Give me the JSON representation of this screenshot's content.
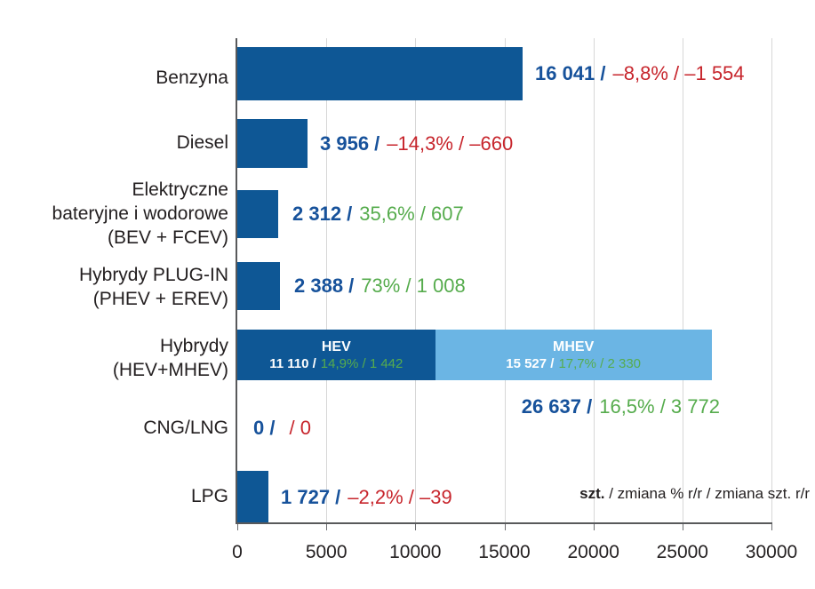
{
  "chart_data": {
    "type": "bar",
    "orientation": "horizontal",
    "title": "",
    "xlabel": "",
    "ylabel": "",
    "xlim": [
      0,
      30000
    ],
    "x_ticks": [
      "0",
      "5000",
      "10000",
      "15000",
      "20000",
      "25000",
      "30000"
    ],
    "grid": "vertical",
    "rows": [
      {
        "category": "Benzyna",
        "label_lines": [
          "Benzyna"
        ],
        "value": 16041,
        "value_label": "16 041 /",
        "change_label": "–8,8% / –1 554",
        "trend": "negative"
      },
      {
        "category": "Diesel",
        "label_lines": [
          "Diesel"
        ],
        "value": 3956,
        "value_label": "3 956 /",
        "change_label": "–14,3% / –660",
        "trend": "negative"
      },
      {
        "category": "Elektryczne bateryjne i wodorowe (BEV + FCEV)",
        "label_lines": [
          "Elektryczne",
          "bateryjne i wodorowe",
          "(BEV + FCEV)"
        ],
        "value": 2312,
        "value_label": "2 312 /",
        "change_label": "35,6% / 607",
        "trend": "positive"
      },
      {
        "category": "Hybrydy PLUG-IN (PHEV + EREV)",
        "label_lines": [
          "Hybrydy PLUG-IN",
          "(PHEV + EREV)"
        ],
        "value": 2388,
        "value_label": "2 388 /",
        "change_label": "73% / 1 008",
        "trend": "positive"
      },
      {
        "category": "Hybrydy (HEV+MHEV)",
        "label_lines": [
          "Hybrydy",
          "(HEV+MHEV)"
        ],
        "value": 26637,
        "segments": [
          {
            "name": "HEV",
            "value": 11110,
            "value_label": "11 110 /",
            "change_label": "14,9% / 1 442"
          },
          {
            "name": "MHEV",
            "value": 15527,
            "value_label": "15 527 /",
            "change_label": "17,7% / 2 330"
          }
        ],
        "total": {
          "value": 26637,
          "value_label": "26 637 /",
          "change_label": "16,5% / 3 772",
          "trend": "positive"
        }
      },
      {
        "category": "CNG/LNG",
        "label_lines": [
          "CNG/LNG"
        ],
        "value": 0,
        "value_label": "0 /",
        "change_label": "/ 0",
        "trend": "negative"
      },
      {
        "category": "LPG",
        "label_lines": [
          "LPG"
        ],
        "value": 1727,
        "value_label": "1 727 /",
        "change_label": "–2,2% / –39",
        "trend": "negative"
      }
    ],
    "legend": {
      "bold_part": "szt.",
      "regular_part": " / zmiana % r/r / zmiana szt. r/r"
    }
  },
  "colors": {
    "bar_blue": "#0E5795",
    "bar_light_blue": "#6BB5E4",
    "value_blue": "#17529B",
    "negative_red": "#C7252C",
    "positive_green": "#56AC4D",
    "axis_gray": "#58595B",
    "grid_gray": "#D7D7D7",
    "text_dark": "#231F20",
    "in_bar_text": "#FFFFFF"
  }
}
